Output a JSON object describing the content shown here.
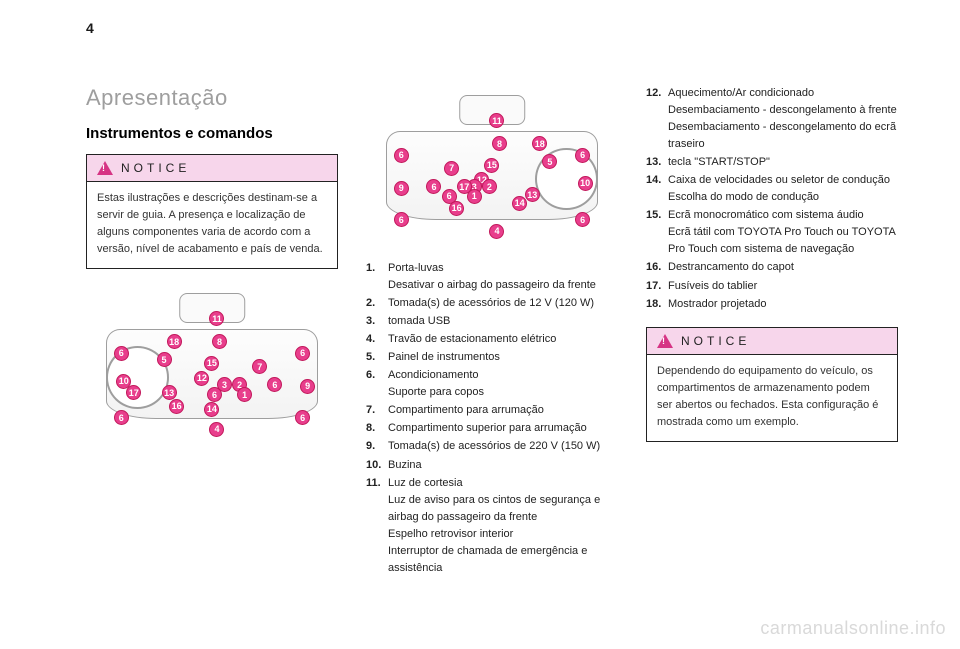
{
  "page_number": "4",
  "title": "Apresentação",
  "subtitle": "Instrumentos e comandos",
  "notice_label": "NOTICE",
  "notice1_text": "Estas ilustrações e descrições destinam-se a servir de guia. A presença e localização de alguns componentes varia de acordo com a versão, nível de acabamento e país de venda.",
  "notice2_text": "Dependendo do equipamento do veículo, os compartimentos de armazenamento podem ser abertos ou fechados. Esta configuração é mostrada como um exemplo.",
  "illus": {
    "bubble_color": "#e83e8c",
    "bubble_border": "#c2185b",
    "dash_border": "#9e9e9e",
    "left_bubbles": [
      {
        "n": "11",
        "x": 49,
        "y": 17
      },
      {
        "n": "18",
        "x": 32,
        "y": 31
      },
      {
        "n": "8",
        "x": 50,
        "y": 31
      },
      {
        "n": "6",
        "x": 11,
        "y": 38
      },
      {
        "n": "6",
        "x": 83,
        "y": 38
      },
      {
        "n": "5",
        "x": 28,
        "y": 42
      },
      {
        "n": "15",
        "x": 47,
        "y": 44
      },
      {
        "n": "7",
        "x": 66,
        "y": 46
      },
      {
        "n": "10",
        "x": 12,
        "y": 55
      },
      {
        "n": "12",
        "x": 43,
        "y": 53
      },
      {
        "n": "3",
        "x": 52,
        "y": 57
      },
      {
        "n": "2",
        "x": 58,
        "y": 57
      },
      {
        "n": "6",
        "x": 72,
        "y": 57
      },
      {
        "n": "9",
        "x": 85,
        "y": 58
      },
      {
        "n": "17",
        "x": 16,
        "y": 62
      },
      {
        "n": "13",
        "x": 30,
        "y": 62
      },
      {
        "n": "1",
        "x": 60,
        "y": 63
      },
      {
        "n": "6",
        "x": 48,
        "y": 63
      },
      {
        "n": "16",
        "x": 33,
        "y": 70
      },
      {
        "n": "14",
        "x": 47,
        "y": 72
      },
      {
        "n": "6",
        "x": 11,
        "y": 77
      },
      {
        "n": "6",
        "x": 83,
        "y": 77
      },
      {
        "n": "4",
        "x": 49,
        "y": 84
      }
    ],
    "right_bubbles": [
      {
        "n": "11",
        "x": 49,
        "y": 17
      },
      {
        "n": "8",
        "x": 50,
        "y": 31
      },
      {
        "n": "18",
        "x": 66,
        "y": 31
      },
      {
        "n": "6",
        "x": 11,
        "y": 38
      },
      {
        "n": "6",
        "x": 83,
        "y": 38
      },
      {
        "n": "7",
        "x": 31,
        "y": 46
      },
      {
        "n": "15",
        "x": 47,
        "y": 44
      },
      {
        "n": "5",
        "x": 70,
        "y": 42
      },
      {
        "n": "9",
        "x": 11,
        "y": 58
      },
      {
        "n": "12",
        "x": 43,
        "y": 53
      },
      {
        "n": "3",
        "x": 40,
        "y": 57
      },
      {
        "n": "2",
        "x": 46,
        "y": 57
      },
      {
        "n": "17",
        "x": 36,
        "y": 57
      },
      {
        "n": "6",
        "x": 24,
        "y": 57
      },
      {
        "n": "6",
        "x": 30,
        "y": 63
      },
      {
        "n": "10",
        "x": 84,
        "y": 55
      },
      {
        "n": "1",
        "x": 40,
        "y": 63
      },
      {
        "n": "13",
        "x": 63,
        "y": 62
      },
      {
        "n": "16",
        "x": 33,
        "y": 70
      },
      {
        "n": "14",
        "x": 58,
        "y": 67
      },
      {
        "n": "6",
        "x": 11,
        "y": 77
      },
      {
        "n": "6",
        "x": 83,
        "y": 77
      },
      {
        "n": "4",
        "x": 49,
        "y": 84
      }
    ]
  },
  "list_col2": [
    {
      "n": "1.",
      "t": "Porta-luvas",
      "sub": [
        "Desativar o airbag do passageiro da frente"
      ]
    },
    {
      "n": "2.",
      "t": "Tomada(s) de acessórios de 12 V (120 W)"
    },
    {
      "n": "3.",
      "t": "tomada USB"
    },
    {
      "n": "4.",
      "t": "Travão de estacionamento elétrico"
    },
    {
      "n": "5.",
      "t": "Painel de instrumentos"
    },
    {
      "n": "6.",
      "t": "Acondicionamento",
      "sub": [
        "Suporte para copos"
      ]
    },
    {
      "n": "7.",
      "t": "Compartimento para arrumação"
    },
    {
      "n": "8.",
      "t": "Compartimento superior para arrumação"
    },
    {
      "n": "9.",
      "t": " Tomada(s) de acessórios  de 220 V (150 W)"
    },
    {
      "n": "10.",
      "t": "Buzina"
    },
    {
      "n": "11.",
      "t": "Luz de cortesia",
      "sub": [
        "Luz de aviso para os cintos de segurança e airbag do passageiro da frente",
        "Espelho retrovisor interior",
        "Interruptor de chamada de emergência e assistência"
      ]
    }
  ],
  "list_col3": [
    {
      "n": "12.",
      "t": "Aquecimento/Ar condicionado",
      "sub": [
        "Desembaciamento - descongelamento à frente",
        "Desembaciamento - descongelamento do ecrã traseiro"
      ]
    },
    {
      "n": "13.",
      "t": "tecla \"START/STOP\""
    },
    {
      "n": "14.",
      "t": "Caixa de velocidades ou seletor de condução",
      "sub": [
        "Escolha do modo de condução"
      ]
    },
    {
      "n": "15.",
      "t": "Ecrã monocromático com sistema áudio",
      "sub": [
        "Ecrã tátil com TOYOTA Pro Touch ou TOYOTA Pro Touch com sistema de navegação"
      ]
    },
    {
      "n": "16.",
      "t": "Destrancamento do capot"
    },
    {
      "n": "17.",
      "t": "Fusíveis do tablier"
    },
    {
      "n": "18.",
      "t": "Mostrador projetado"
    }
  ],
  "watermark": "carmanualsonline.info"
}
